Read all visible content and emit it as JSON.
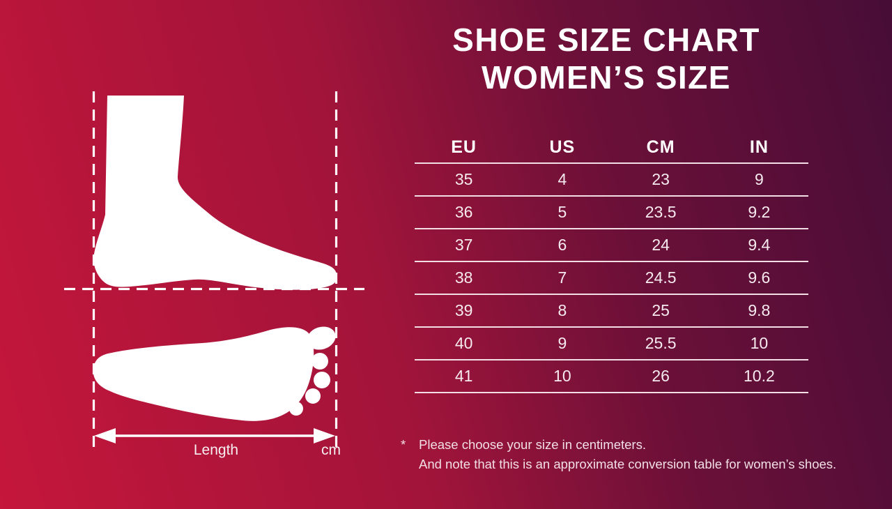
{
  "title": {
    "line1": "SHOE SIZE CHART",
    "line2": "WOMEN’S SIZE"
  },
  "chart_data": {
    "type": "table",
    "title": "SHOE SIZE CHART WOMEN’S SIZE",
    "columns": [
      "EU",
      "US",
      "CM",
      "IN"
    ],
    "rows": [
      [
        35,
        4,
        23,
        9
      ],
      [
        36,
        5,
        23.5,
        9.2
      ],
      [
        37,
        6,
        24,
        9.4
      ],
      [
        38,
        7,
        24.5,
        9.6
      ],
      [
        39,
        8,
        25,
        9.8
      ],
      [
        40,
        9,
        25.5,
        10
      ],
      [
        41,
        10,
        26,
        10.2
      ]
    ],
    "note": "Sizes are approximate conversions; choose size in centimeters"
  },
  "diagram": {
    "length_label": "Length",
    "unit_label": "cm",
    "icons": [
      "side-foot-silhouette",
      "footprint-silhouette",
      "length-arrow"
    ]
  },
  "footnote": {
    "marker": "*",
    "line1": "Please choose your size in centimeters.",
    "line2": "And note that this is an approximate conversion table for women’s shoes."
  },
  "colors": {
    "background_start": "#c5163b",
    "background_end": "#470d37",
    "title_text": "#ffffff",
    "table_line": "#f2dee4",
    "table_text": "#f6eaee",
    "footnote_text": "#f2dfe5",
    "silhouette": "#ffffff"
  }
}
